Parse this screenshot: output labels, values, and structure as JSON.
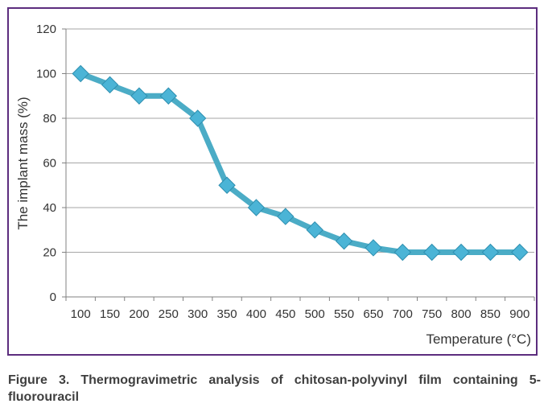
{
  "chart_data": {
    "type": "line",
    "categories": [
      "100",
      "150",
      "200",
      "250",
      "300",
      "350",
      "400",
      "450",
      "500",
      "550",
      "650",
      "700",
      "750",
      "800",
      "850",
      "900"
    ],
    "series": [
      {
        "values": [
          100,
          95,
          90,
          90,
          80,
          50,
          40,
          36,
          30,
          25,
          22,
          20,
          20,
          20,
          20,
          20
        ]
      }
    ],
    "xlabel": "Temperature (°C)",
    "ylabel": "The implant mass (%)",
    "ylim": [
      0,
      120
    ],
    "yticks": [
      0,
      20,
      40,
      60,
      80,
      100,
      120
    ],
    "grid": true,
    "legend": "none",
    "colors": {
      "line": "#4bacc6",
      "marker": "#4bb4d6",
      "frame": "#5c2d7e",
      "grid": "#a6a6a6"
    }
  },
  "caption": "Figure 3. Thermogravimetric analysis of chitosan-polyvinyl film containing 5-fluorouracil"
}
